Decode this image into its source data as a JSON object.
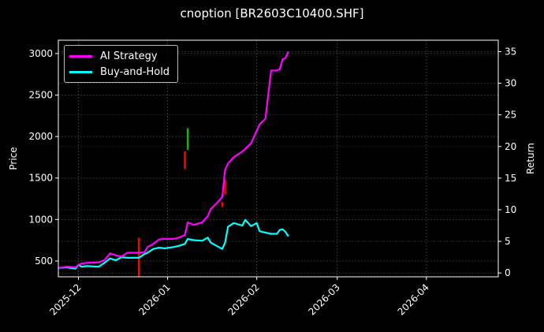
{
  "title": "cnoption [BR2603C10400.SHF]",
  "legend": [
    {
      "label": "AI Strategy",
      "color": "#ff00ff"
    },
    {
      "label": "Buy-and-Hold",
      "color": "#00ffff"
    }
  ],
  "axes": {
    "left_label": "Price",
    "right_label": "Return",
    "left_ticks": [
      "500",
      "1000",
      "1500",
      "2000",
      "2500",
      "3000"
    ],
    "right_ticks": [
      "0",
      "5",
      "10",
      "15",
      "20",
      "25",
      "30",
      "35"
    ],
    "x_ticks": [
      "2025-12",
      "2026-01",
      "2026-02",
      "2026-03",
      "2026-04"
    ]
  },
  "chart_data": {
    "type": "line",
    "title": "cnoption [BR2603C10400.SHF]",
    "xlabel": "",
    "ylabel": "Price",
    "y2label": "Return",
    "ylim": [
      310,
      3160
    ],
    "y2lim": [
      -0.6,
      36.8
    ],
    "xlim": [
      "2025-11-24",
      "2026-04-26"
    ],
    "grid": true,
    "legend_position": "upper left",
    "x_ticks": [
      "2025-12",
      "2026-01",
      "2026-02",
      "2026-03",
      "2026-04"
    ],
    "series": [
      {
        "name": "AI Strategy",
        "color": "#ff00ff",
        "axis": "right",
        "x": [
          "2025-11-24",
          "2025-11-27",
          "2025-11-30",
          "2025-12-01",
          "2025-12-02",
          "2025-12-04",
          "2025-12-08",
          "2025-12-10",
          "2025-12-12",
          "2025-12-14",
          "2025-12-16",
          "2025-12-18",
          "2025-12-20",
          "2025-12-22",
          "2025-12-24",
          "2025-12-25",
          "2025-12-27",
          "2025-12-29",
          "2025-12-31",
          "2026-01-03",
          "2026-01-05",
          "2026-01-07",
          "2026-01-08",
          "2026-01-10",
          "2026-01-13",
          "2026-01-15",
          "2026-01-16",
          "2026-01-18",
          "2026-01-20",
          "2026-01-21",
          "2026-01-22",
          "2026-01-24",
          "2026-01-27",
          "2026-01-30",
          "2026-02-02",
          "2026-02-04",
          "2026-02-06",
          "2026-02-08",
          "2026-02-09",
          "2026-02-10",
          "2026-02-11",
          "2026-02-12"
        ],
        "values": [
          0.8,
          1.0,
          0.9,
          1.3,
          1.5,
          1.6,
          1.7,
          2.0,
          3.1,
          2.8,
          2.6,
          3.2,
          3.2,
          3.2,
          3.3,
          4.1,
          4.6,
          5.3,
          5.4,
          5.4,
          5.6,
          6.0,
          8.0,
          7.6,
          8.0,
          9.0,
          10.1,
          11.0,
          12.0,
          16.3,
          17.3,
          18.3,
          19.2,
          20.5,
          23.5,
          24.4,
          32.0,
          32.0,
          32.2,
          33.8,
          34.0,
          35.0
        ]
      },
      {
        "name": "Buy-and-Hold",
        "color": "#00ffff",
        "axis": "right",
        "x": [
          "2025-11-24",
          "2025-11-27",
          "2025-11-30",
          "2025-12-01",
          "2025-12-02",
          "2025-12-04",
          "2025-12-08",
          "2025-12-10",
          "2025-12-12",
          "2025-12-14",
          "2025-12-16",
          "2025-12-18",
          "2025-12-20",
          "2025-12-22",
          "2025-12-24",
          "2025-12-25",
          "2025-12-27",
          "2025-12-29",
          "2025-12-31",
          "2026-01-03",
          "2026-01-05",
          "2026-01-07",
          "2026-01-08",
          "2026-01-10",
          "2026-01-13",
          "2026-01-15",
          "2026-01-16",
          "2026-01-18",
          "2026-01-20",
          "2026-01-21",
          "2026-01-22",
          "2026-01-24",
          "2026-01-27",
          "2026-01-28",
          "2026-01-30",
          "2026-02-01",
          "2026-02-02",
          "2026-02-04",
          "2026-02-06",
          "2026-02-08",
          "2026-02-09",
          "2026-02-10",
          "2026-02-11",
          "2026-02-12"
        ],
        "values": [
          0.8,
          0.9,
          0.7,
          1.3,
          1.0,
          1.1,
          1.0,
          1.6,
          2.3,
          2.0,
          2.5,
          2.4,
          2.4,
          2.4,
          3.0,
          3.2,
          3.8,
          4.0,
          3.9,
          4.1,
          4.3,
          4.6,
          5.4,
          5.2,
          5.1,
          5.6,
          4.8,
          4.3,
          3.8,
          4.8,
          7.3,
          7.9,
          7.5,
          8.4,
          7.4,
          7.9,
          6.6,
          6.4,
          6.2,
          6.2,
          6.8,
          6.9,
          6.5,
          5.8
        ]
      }
    ],
    "candles": [
      {
        "date": "2025-12-22",
        "color": "#ff0000",
        "top_price": 780,
        "bottom_price": 310
      },
      {
        "date": "2026-01-07",
        "color": "#ff0000",
        "top_price": 1820,
        "bottom_price": 1610
      },
      {
        "date": "2026-01-08",
        "color": "#00c000",
        "top_price": 2100,
        "bottom_price": 1840
      },
      {
        "date": "2026-01-21",
        "color": "#ff0000",
        "top_price": 1480,
        "bottom_price": 1300
      },
      {
        "date": "2026-01-20",
        "color": "#ff0000",
        "top_price": 1210,
        "bottom_price": 1150
      }
    ]
  }
}
